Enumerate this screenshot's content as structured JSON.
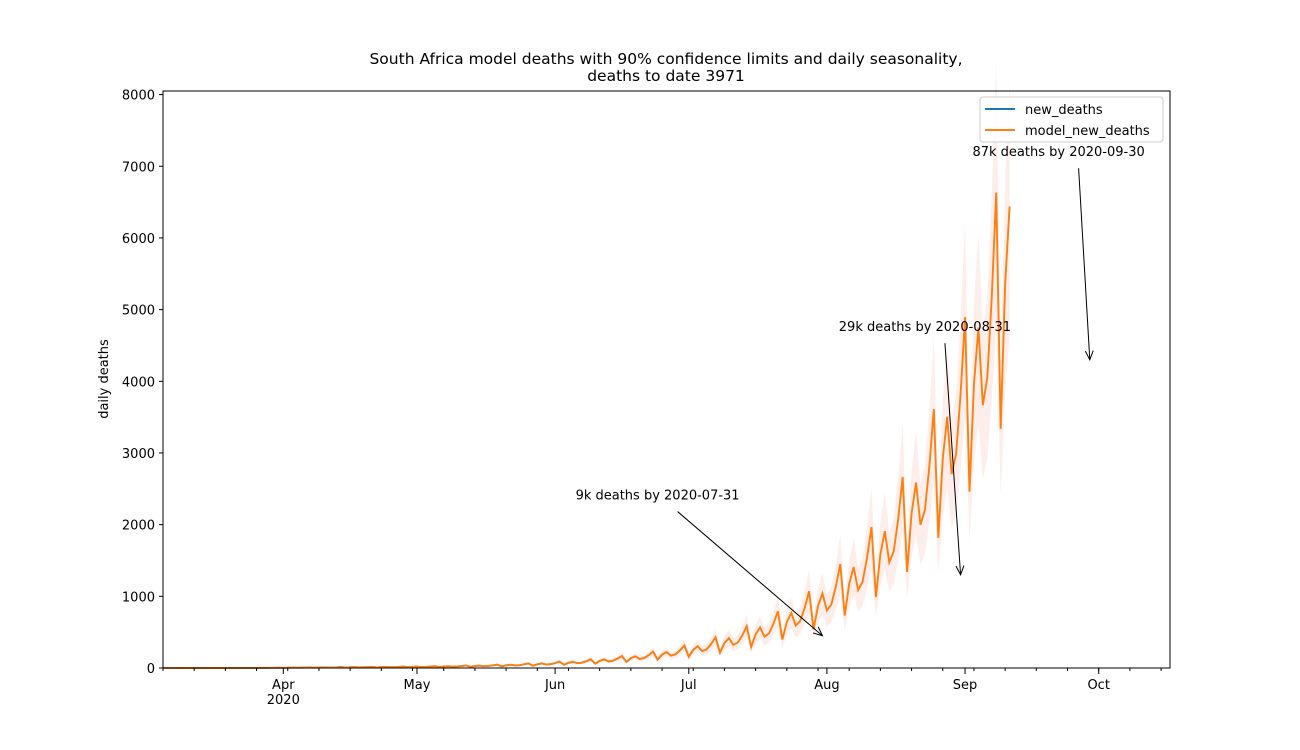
{
  "chart_data": {
    "type": "line",
    "title_line1": "South Africa model deaths with 90% confidence limits and daily seasonality,",
    "title_line2": "deaths to date 3971",
    "xlabel": "",
    "ylabel": "daily deaths",
    "ylim": [
      0,
      8050
    ],
    "yticks": [
      0,
      1000,
      2000,
      3000,
      4000,
      5000,
      6000,
      7000,
      8000
    ],
    "x_start": "2020-03-05",
    "x_end": "2020-10-17",
    "x_major_ticks": [
      {
        "date": "2020-04-01",
        "label": "Apr",
        "sublabel": "2020"
      },
      {
        "date": "2020-05-01",
        "label": "May",
        "sublabel": ""
      },
      {
        "date": "2020-06-01",
        "label": "Jun",
        "sublabel": ""
      },
      {
        "date": "2020-07-01",
        "label": "Jul",
        "sublabel": ""
      },
      {
        "date": "2020-08-01",
        "label": "Aug",
        "sublabel": ""
      },
      {
        "date": "2020-09-01",
        "label": "Sep",
        "sublabel": ""
      },
      {
        "date": "2020-10-01",
        "label": "Oct",
        "sublabel": ""
      }
    ],
    "grid": false,
    "legend_position": "top-right",
    "series": [
      {
        "name": "new_deaths",
        "color": "#1f77b4",
        "start_date": "2020-03-05",
        "values": [
          0,
          0,
          0,
          0,
          0,
          0,
          0,
          0,
          0,
          0,
          0,
          0,
          0,
          0,
          0,
          0,
          0,
          0,
          1,
          1,
          1,
          1,
          2,
          2,
          3,
          3,
          3,
          4,
          4,
          5,
          5,
          6,
          6,
          7,
          7,
          7,
          8,
          8,
          9,
          9,
          10,
          10,
          10,
          11,
          11,
          12,
          12,
          12,
          13,
          13,
          13,
          14,
          14,
          15,
          15,
          16,
          16,
          17,
          17,
          18,
          19,
          19,
          20,
          21,
          22,
          23,
          24,
          25,
          26,
          27,
          28,
          29,
          30,
          32,
          33,
          35,
          36,
          38,
          40,
          42,
          43,
          46,
          48,
          50,
          52,
          55,
          57,
          60,
          63,
          66,
          69,
          72,
          75,
          79,
          82,
          86,
          90,
          94,
          99,
          104,
          108,
          113,
          119,
          124,
          130,
          136,
          142,
          148,
          155,
          162,
          170,
          178,
          186,
          194,
          203,
          212,
          222,
          232,
          243,
          254,
          265,
          277,
          290,
          303,
          317,
          332,
          347,
          362,
          379
        ]
      },
      {
        "name": "model_new_deaths",
        "color": "#ff7f0e",
        "band_color": "#fbd9d4",
        "start_date": "2020-03-05",
        "values": [
          0,
          0,
          0,
          0,
          0,
          0,
          0,
          0,
          0,
          0,
          0,
          0,
          0,
          0,
          0,
          0,
          0,
          0,
          1,
          1,
          1,
          1,
          2,
          2,
          3,
          3,
          3,
          4,
          4,
          5,
          5,
          6,
          6,
          7,
          7,
          7,
          8,
          8,
          9,
          9,
          10,
          10,
          10,
          11,
          11,
          12,
          12,
          12,
          13,
          13,
          13,
          14,
          14,
          15,
          15,
          16,
          16,
          17,
          17,
          18,
          19,
          19,
          20,
          21,
          22,
          23,
          24,
          25,
          26,
          27,
          28,
          29,
          30,
          32,
          33,
          35,
          36,
          38,
          40,
          42,
          43,
          46,
          48,
          50,
          52,
          55,
          57,
          60,
          63,
          66,
          69,
          72,
          75,
          79,
          82,
          86,
          90,
          94,
          99,
          104,
          108,
          113,
          119,
          124,
          130,
          136,
          142,
          148,
          155,
          162,
          170,
          178,
          186,
          194,
          203,
          212,
          222,
          232,
          243,
          254,
          265,
          277,
          290,
          303,
          317,
          332,
          347,
          362,
          379,
          396,
          414,
          432,
          451,
          471,
          492,
          514,
          537,
          561,
          586,
          612,
          639,
          668,
          697,
          728,
          760,
          794,
          829,
          866,
          904,
          944,
          986,
          1030,
          1075,
          1123,
          1173,
          1225,
          1279,
          1336,
          1395,
          1457,
          1522,
          1589,
          1660,
          1733,
          1810,
          1891,
          1975,
          2062,
          2154,
          2249,
          2349,
          2453,
          2562,
          2676,
          2794,
          2918,
          3048,
          3183,
          3324,
          3472,
          3626,
          3787,
          3955,
          4130,
          4314,
          4505,
          4705,
          4914,
          5132,
          5360,
          5600
        ],
        "seasonality": [
          1.0,
          1.15,
          0.85,
          0.9,
          1.1,
          1.35,
          0.65
        ]
      }
    ],
    "annotations": [
      {
        "text": "9k deaths by 2020-07-31",
        "text_date": "2020-06-24",
        "text_value": 2350,
        "point_date": "2020-07-31",
        "point_value": 450
      },
      {
        "text": "29k deaths by 2020-08-31",
        "text_date": "2020-08-23",
        "text_value": 4700,
        "point_date": "2020-08-31",
        "point_value": 1300
      },
      {
        "text": "87k deaths by 2020-09-30",
        "text_date": "2020-09-22",
        "text_value": 7140,
        "point_date": "2020-09-29",
        "point_value": 4300
      }
    ]
  }
}
